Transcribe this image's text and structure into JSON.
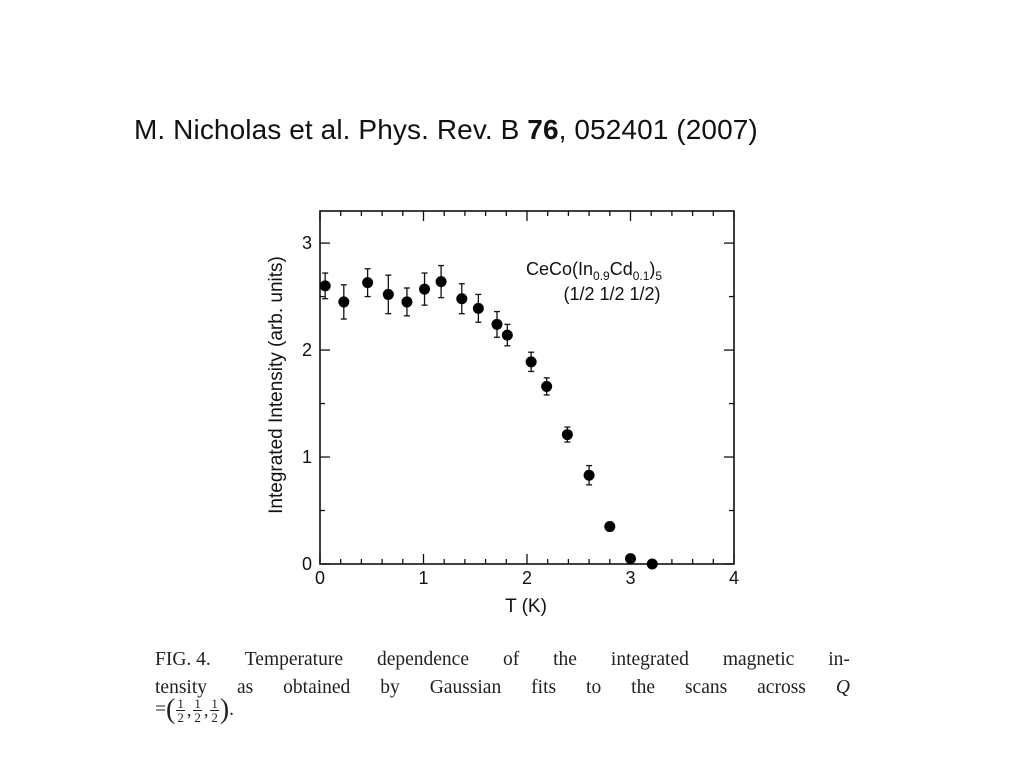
{
  "citation": {
    "authors": "M. Nicholas et al. Phys. Rev. B ",
    "volume": "76",
    "rest": ", 052401 (2007)"
  },
  "chart_data": {
    "type": "scatter",
    "xlabel": "T (K)",
    "ylabel": "Integrated Intensity (arb. units)",
    "xlim": [
      0,
      4
    ],
    "ylim": [
      0,
      3.3
    ],
    "xticks": [
      "0",
      "1",
      "2",
      "3",
      "4"
    ],
    "yticks": [
      "0",
      "1",
      "2",
      "3"
    ],
    "grid": false,
    "legend": "top-right",
    "annotation": {
      "compound_base": "CeCo(In",
      "sub1": "0.9",
      "mid": "Cd",
      "sub2": "0.1",
      "close": ")",
      "sub3": "5",
      "q_vector": "(1/2 1/2 1/2)"
    },
    "series": [
      {
        "x": [
          0.05,
          0.23,
          0.46,
          0.66,
          0.84,
          1.01,
          1.17,
          1.37,
          1.53,
          1.71,
          1.81,
          2.04,
          2.19,
          2.39,
          2.6,
          2.8,
          3.0,
          3.21
        ],
        "y": [
          2.6,
          2.45,
          2.63,
          2.52,
          2.45,
          2.57,
          2.64,
          2.48,
          2.39,
          2.24,
          2.14,
          1.89,
          1.66,
          1.21,
          0.83,
          0.35,
          0.05,
          0.0
        ],
        "err": [
          0.12,
          0.16,
          0.13,
          0.18,
          0.13,
          0.15,
          0.15,
          0.14,
          0.13,
          0.12,
          0.1,
          0.09,
          0.08,
          0.07,
          0.09,
          0.0,
          0.0,
          0.0
        ]
      }
    ]
  },
  "caption": {
    "label": "FIG. 4.",
    "line1": [
      "Temperature",
      "dependence",
      "of",
      "the",
      "integrated",
      "magnetic",
      "in-"
    ],
    "line2": [
      "tensity",
      "as",
      "obtained",
      "by",
      "Gaussian",
      "fits",
      "to",
      "the",
      "scans",
      "across",
      "Q"
    ],
    "line3_prefix": "=",
    "frac_num": "1",
    "frac_den": "2",
    "line3_end": "."
  }
}
